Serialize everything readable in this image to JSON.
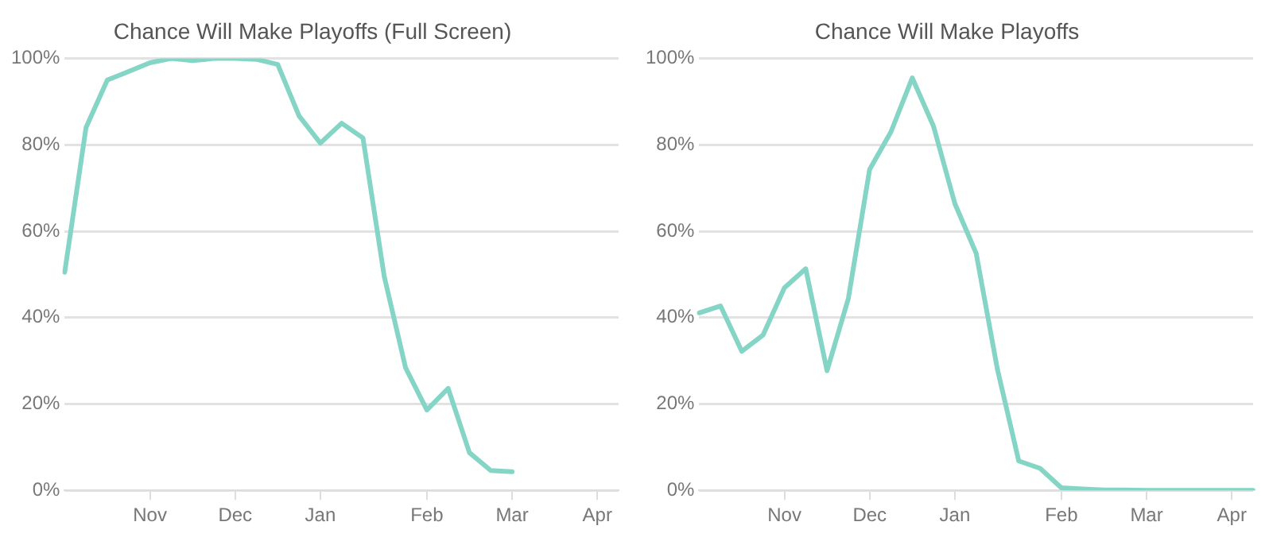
{
  "chart_data": [
    {
      "type": "line",
      "title": "Chance Will Make Playoffs (Full Screen)",
      "categories": [
        null,
        null,
        null,
        null,
        "Nov",
        null,
        null,
        null,
        "Dec",
        null,
        null,
        null,
        "Jan",
        null,
        null,
        null,
        null,
        "Feb",
        null,
        null,
        null,
        "Mar",
        null,
        null,
        null,
        "Apr",
        null
      ],
      "series": [
        {
          "color": "#84d5c5",
          "values": [
            50.5,
            84,
            95,
            97,
            99,
            100,
            99.5,
            100,
            100,
            99.8,
            98.6,
            86.7,
            80.4,
            85,
            81.6,
            49.5,
            28.4,
            18.6,
            23.6,
            8.7,
            4.6,
            4.3,
            null,
            null,
            null,
            null,
            null
          ]
        }
      ],
      "ylim": [
        0,
        100
      ],
      "yticks": [
        {
          "value": 0,
          "label": "0%"
        },
        {
          "value": 20,
          "label": "20%"
        },
        {
          "value": 40,
          "label": "40%"
        },
        {
          "value": 60,
          "label": "60%"
        },
        {
          "value": 80,
          "label": "80%"
        },
        {
          "value": 100,
          "label": "100%"
        }
      ],
      "grid": "y",
      "legend": false,
      "marker": "none",
      "line_style": "solid"
    },
    {
      "type": "line",
      "title": "Chance Will Make Playoffs",
      "categories": [
        null,
        null,
        null,
        null,
        "Nov",
        null,
        null,
        null,
        "Dec",
        null,
        null,
        null,
        "Jan",
        null,
        null,
        null,
        null,
        "Feb",
        null,
        null,
        null,
        "Mar",
        null,
        null,
        null,
        "Apr",
        null
      ],
      "series": [
        {
          "color": "#84d5c5",
          "values": [
            41.1,
            42.7,
            32.2,
            36,
            46.9,
            51.3,
            27.7,
            44.4,
            74.3,
            83,
            95.5,
            84.3,
            66.4,
            54.9,
            28,
            6.8,
            5.1,
            0.6,
            0.3,
            0.1,
            0.1,
            0,
            0,
            0,
            0,
            0,
            0
          ]
        }
      ],
      "ylim": [
        0,
        100
      ],
      "yticks": [
        {
          "value": 0,
          "label": "0%"
        },
        {
          "value": 20,
          "label": "20%"
        },
        {
          "value": 40,
          "label": "40%"
        },
        {
          "value": 60,
          "label": "60%"
        },
        {
          "value": 80,
          "label": "80%"
        },
        {
          "value": 100,
          "label": "100%"
        }
      ],
      "grid": "y",
      "legend": false,
      "marker": "none",
      "line_style": "solid"
    }
  ]
}
